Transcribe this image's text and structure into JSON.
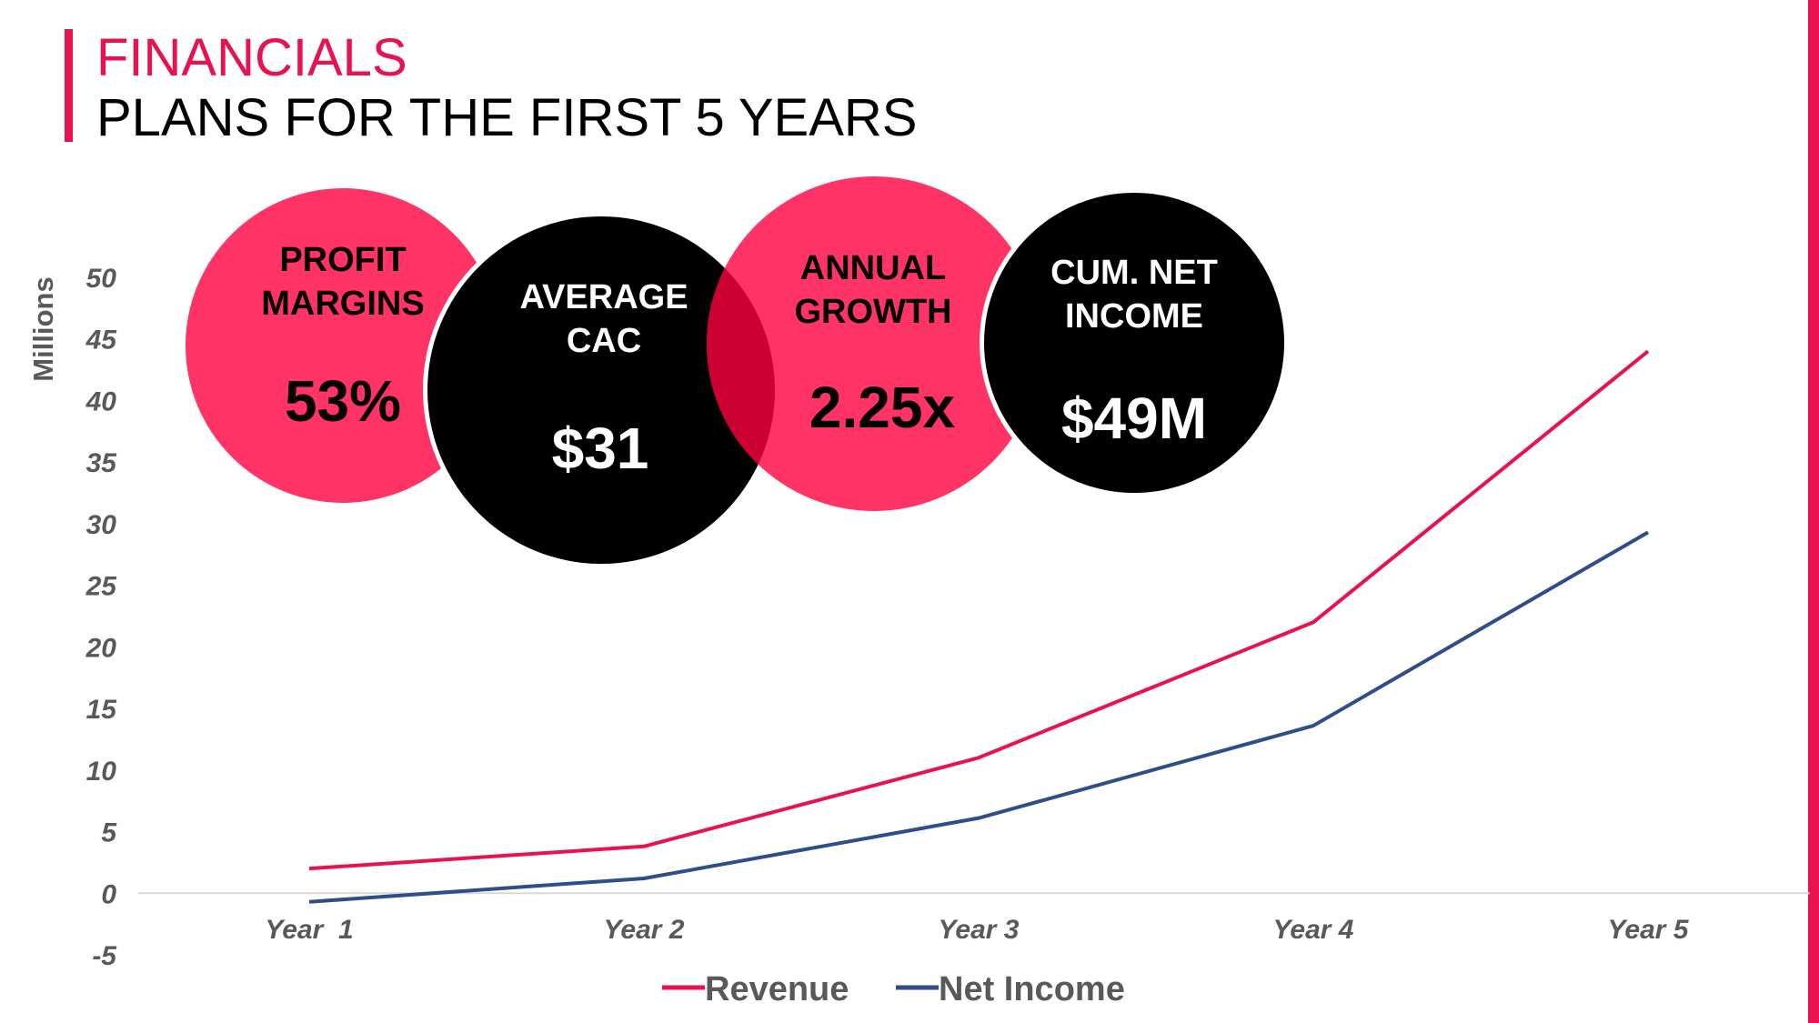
{
  "header": {
    "title": "FINANCIALS",
    "subtitle": "PLANS FOR THE FIRST 5 YEARS"
  },
  "colors": {
    "accent": "#e8124f",
    "pink": "#ff3366",
    "black": "#000000",
    "overlap": "#cc0033",
    "revenue": "#e8124f",
    "net_income": "#2e4d8a",
    "axis_text": "#595959"
  },
  "kpis": [
    {
      "label_line1": "PROFIT",
      "label_line2": "MARGINS",
      "value": "53%",
      "color": "pink"
    },
    {
      "label_line1": "AVERAGE",
      "label_line2": "CAC",
      "value": "$31",
      "color": "black"
    },
    {
      "label_line1": "ANNUAL",
      "label_line2": "GROWTH",
      "value": "2.25x",
      "color": "pink"
    },
    {
      "label_line1": "CUM. NET",
      "label_line2": "INCOME",
      "value": "$49M",
      "color": "black"
    }
  ],
  "chart_data": {
    "type": "line",
    "categories": [
      "Year  1",
      "Year 2",
      "Year 3",
      "Year 4",
      "Year 5"
    ],
    "series": [
      {
        "name": "Revenue",
        "values": [
          2.0,
          3.8,
          11.0,
          22.0,
          44.0
        ],
        "color": "#e8124f"
      },
      {
        "name": "Net Income",
        "values": [
          -0.7,
          1.2,
          6.1,
          13.6,
          29.3
        ],
        "color": "#2e4d8a"
      }
    ],
    "ylabel": "Millions",
    "ylim": [
      -5,
      50
    ],
    "yticks": [
      50,
      45,
      40,
      35,
      30,
      25,
      20,
      15,
      10,
      5,
      0,
      -5
    ],
    "grid": false,
    "legend": "bottom-center"
  }
}
